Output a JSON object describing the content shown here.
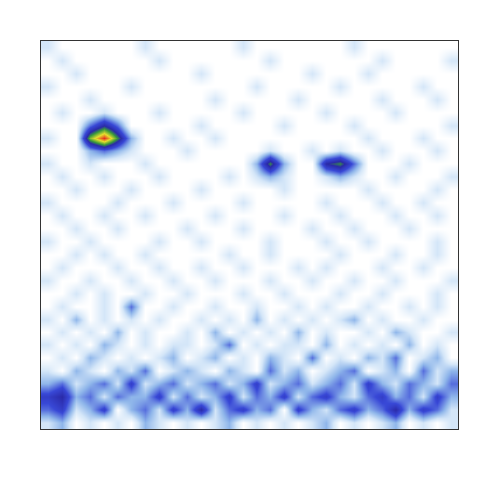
{
  "chart_data": {
    "type": "heatmap",
    "xlim": [
      -0.5,
      29.5
    ],
    "ylim": [
      -0.5,
      29.5
    ],
    "xticks": [],
    "yticks": [],
    "tick_labels": false,
    "grid": false,
    "zlim": [
      0,
      10
    ],
    "cells": [
      [
        1,
        2,
        0,
        1,
        0,
        1,
        0,
        2,
        1,
        0,
        1,
        0,
        1,
        2,
        0,
        1,
        0,
        1,
        0,
        1,
        2,
        0,
        1,
        0,
        1,
        2,
        0,
        1,
        0,
        1
      ],
      [
        3,
        4,
        1,
        2,
        4,
        0,
        2,
        3,
        1,
        4,
        2,
        5,
        1,
        3,
        4,
        2,
        3,
        0,
        4,
        2,
        1,
        3,
        4,
        2,
        3,
        5,
        2,
        4,
        3,
        1
      ],
      [
        4,
        5,
        2,
        3,
        1,
        3,
        2,
        2,
        4,
        1,
        3,
        1,
        2,
        4,
        1,
        3,
        2,
        4,
        1,
        3,
        4,
        2,
        1,
        3,
        4,
        2,
        3,
        1,
        4,
        2
      ],
      [
        2,
        3,
        1,
        2,
        3,
        1,
        4,
        1,
        2,
        3,
        1,
        2,
        3,
        1,
        2,
        4,
        1,
        2,
        3,
        1,
        2,
        3,
        1,
        4,
        2,
        1,
        3,
        2,
        1,
        3
      ],
      [
        1,
        0,
        2,
        1,
        0,
        2,
        1,
        3,
        0,
        1,
        2,
        1,
        0,
        2,
        1,
        0,
        3,
        1,
        2,
        0,
        1,
        2,
        3,
        0,
        1,
        2,
        0,
        3,
        1,
        2
      ],
      [
        0,
        1,
        0,
        2,
        1,
        0,
        1,
        0,
        1,
        2,
        0,
        1,
        2,
        0,
        1,
        0,
        2,
        1,
        0,
        3,
        0,
        1,
        0,
        2,
        1,
        3,
        0,
        1,
        2,
        0
      ],
      [
        1,
        0,
        1,
        0,
        2,
        1,
        0,
        1,
        0,
        1,
        1,
        0,
        1,
        3,
        0,
        1,
        0,
        1,
        1,
        0,
        2,
        0,
        1,
        0,
        1,
        0,
        2,
        0,
        1,
        0
      ],
      [
        0,
        1,
        0,
        1,
        0,
        2,
        0,
        1,
        0,
        0,
        1,
        0,
        2,
        0,
        1,
        0,
        1,
        0,
        2,
        0,
        1,
        0,
        0,
        1,
        0,
        2,
        1,
        0,
        0,
        1
      ],
      [
        1,
        0,
        2,
        0,
        1,
        0,
        1,
        0,
        1,
        0,
        0,
        1,
        0,
        1,
        0,
        2,
        0,
        1,
        0,
        1,
        0,
        1,
        2,
        0,
        1,
        0,
        0,
        1,
        0,
        0
      ],
      [
        0,
        1,
        0,
        0,
        1,
        0,
        3,
        0,
        0,
        1,
        0,
        0,
        1,
        0,
        0,
        1,
        0,
        0,
        1,
        0,
        1,
        0,
        0,
        1,
        0,
        0,
        1,
        0,
        1,
        0
      ],
      [
        0,
        0,
        1,
        0,
        1,
        0,
        0,
        1,
        0,
        0,
        1,
        0,
        0,
        0,
        1,
        0,
        0,
        1,
        0,
        0,
        0,
        1,
        0,
        0,
        1,
        0,
        0,
        0,
        1,
        0
      ],
      [
        1,
        0,
        0,
        1,
        0,
        0,
        1,
        0,
        0,
        1,
        0,
        0,
        1,
        0,
        0,
        0,
        1,
        0,
        0,
        1,
        0,
        0,
        1,
        0,
        0,
        1,
        0,
        0,
        0,
        1
      ],
      [
        0,
        1,
        0,
        0,
        0,
        1,
        0,
        0,
        1,
        0,
        0,
        1,
        0,
        0,
        1,
        0,
        0,
        0,
        1,
        0,
        1,
        0,
        0,
        0,
        1,
        0,
        0,
        1,
        0,
        0
      ],
      [
        0,
        0,
        1,
        0,
        1,
        0,
        0,
        1,
        0,
        0,
        0,
        0,
        0,
        1,
        0,
        0,
        1,
        0,
        0,
        0,
        0,
        1,
        0,
        0,
        0,
        1,
        0,
        0,
        1,
        0
      ],
      [
        1,
        0,
        0,
        1,
        0,
        0,
        0,
        0,
        1,
        0,
        0,
        1,
        0,
        0,
        0,
        0,
        1,
        0,
        0,
        0,
        1,
        0,
        0,
        1,
        0,
        0,
        0,
        0,
        1,
        0
      ],
      [
        0,
        0,
        1,
        0,
        0,
        1,
        0,
        0,
        0,
        0,
        1,
        0,
        0,
        0,
        1,
        0,
        0,
        0,
        0,
        1,
        0,
        0,
        1,
        0,
        0,
        0,
        1,
        0,
        0,
        0
      ],
      [
        0,
        1,
        0,
        0,
        1,
        0,
        0,
        1,
        0,
        0,
        0,
        0,
        1,
        0,
        0,
        0,
        0,
        1,
        0,
        0,
        0,
        1,
        0,
        0,
        0,
        1,
        0,
        0,
        1,
        0
      ],
      [
        1,
        0,
        0,
        0,
        0,
        1,
        0,
        0,
        0,
        1,
        0,
        0,
        0,
        0,
        1,
        0,
        0,
        0,
        0,
        0,
        1,
        0,
        0,
        0,
        1,
        0,
        0,
        1,
        0,
        0
      ],
      [
        0,
        0,
        1,
        0,
        0,
        0,
        1,
        0,
        0,
        0,
        0,
        1,
        0,
        0,
        0,
        0,
        0,
        1,
        0,
        0,
        0,
        0,
        0,
        1,
        0,
        0,
        0,
        0,
        1,
        0
      ],
      [
        0,
        1,
        0,
        0,
        1,
        0,
        0,
        0,
        1,
        0,
        0,
        0,
        0,
        1,
        0,
        1,
        2,
        1,
        0,
        0,
        1,
        2,
        1,
        0,
        0,
        1,
        0,
        0,
        0,
        1
      ],
      [
        1,
        0,
        0,
        1,
        0,
        0,
        0,
        1,
        0,
        0,
        0,
        0,
        0,
        0,
        0,
        2,
        6,
        2,
        0,
        0,
        5,
        6,
        3,
        0,
        0,
        0,
        1,
        0,
        0,
        0
      ],
      [
        0,
        0,
        0,
        2,
        3,
        2,
        1,
        0,
        0,
        0,
        1,
        0,
        0,
        0,
        0,
        0,
        1,
        0,
        0,
        1,
        0,
        1,
        0,
        0,
        1,
        0,
        0,
        0,
        1,
        0
      ],
      [
        1,
        0,
        0,
        7,
        10,
        6,
        2,
        0,
        0,
        1,
        0,
        0,
        1,
        0,
        0,
        0,
        0,
        0,
        0,
        0,
        0,
        0,
        0,
        1,
        0,
        0,
        0,
        1,
        0,
        0
      ],
      [
        0,
        0,
        0,
        3,
        5,
        3,
        0,
        0,
        0,
        0,
        0,
        1,
        0,
        0,
        0,
        0,
        0,
        1,
        0,
        0,
        0,
        0,
        1,
        0,
        0,
        0,
        0,
        0,
        0,
        1
      ],
      [
        0,
        1,
        0,
        0,
        1,
        0,
        0,
        0,
        1,
        0,
        0,
        0,
        0,
        0,
        1,
        0,
        0,
        0,
        0,
        0,
        1,
        0,
        0,
        0,
        0,
        1,
        0,
        0,
        0,
        0
      ],
      [
        0,
        0,
        0,
        1,
        0,
        0,
        0,
        0,
        0,
        0,
        0,
        0,
        1,
        0,
        0,
        0,
        0,
        0,
        1,
        0,
        0,
        0,
        0,
        0,
        1,
        0,
        0,
        0,
        1,
        0
      ],
      [
        1,
        0,
        0,
        0,
        0,
        0,
        1,
        0,
        0,
        0,
        0,
        0,
        0,
        0,
        0,
        1,
        0,
        0,
        0,
        0,
        0,
        1,
        0,
        0,
        0,
        0,
        0,
        1,
        0,
        0
      ],
      [
        0,
        0,
        1,
        0,
        0,
        0,
        0,
        0,
        0,
        0,
        0,
        1,
        0,
        0,
        0,
        0,
        0,
        0,
        0,
        1,
        0,
        0,
        0,
        1,
        0,
        0,
        0,
        0,
        0,
        0
      ],
      [
        0,
        1,
        0,
        0,
        0,
        0,
        0,
        0,
        1,
        0,
        0,
        0,
        0,
        0,
        0,
        0,
        1,
        0,
        0,
        0,
        0,
        0,
        0,
        0,
        1,
        0,
        0,
        0,
        0,
        1
      ],
      [
        1,
        0,
        0,
        0,
        0,
        0,
        0,
        1,
        0,
        0,
        0,
        0,
        0,
        0,
        1,
        0,
        0,
        0,
        0,
        0,
        0,
        0,
        1,
        0,
        0,
        0,
        0,
        0,
        0,
        0
      ]
    ]
  }
}
